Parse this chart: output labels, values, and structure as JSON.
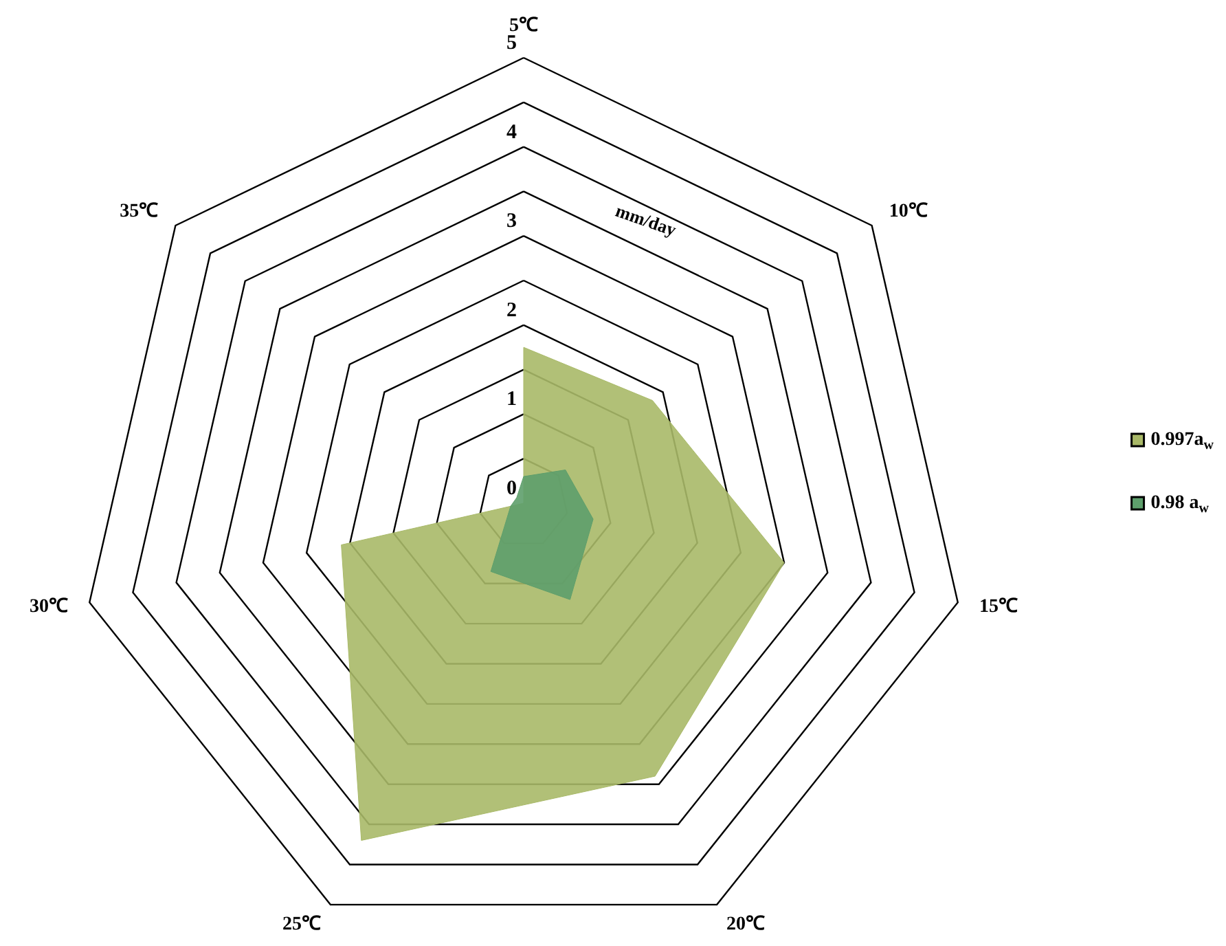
{
  "chart_data": {
    "type": "radar",
    "ylabel": "mm/day",
    "categories": [
      "5℃",
      "10℃",
      "15℃",
      "20℃",
      "25℃",
      "30℃",
      "35℃"
    ],
    "series": [
      {
        "name": "0.997a$_{w}$",
        "color": "#a9b968",
        "values": [
          1.75,
          1.85,
          3.0,
          3.4,
          4.2,
          2.1,
          0
        ]
      },
      {
        "name": "0.98 a$_{w}$",
        "color": "#5e9f6c",
        "values": [
          0.3,
          0.6,
          0.8,
          1.2,
          0.85,
          0.15,
          0.1
        ]
      }
    ],
    "ylim": [
      0,
      5
    ],
    "yticks": [
      0,
      1,
      2,
      3,
      4,
      5
    ],
    "grid": true,
    "legend": "right"
  }
}
